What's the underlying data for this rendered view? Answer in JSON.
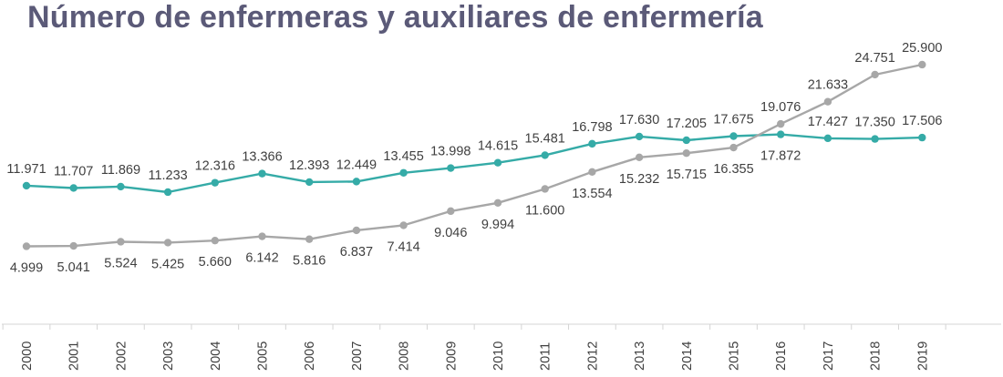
{
  "chart_data": {
    "type": "line",
    "title": "Número de enfermeras y auxiliares de enfermería",
    "categories": [
      "2000",
      "2001",
      "2002",
      "2003",
      "2004",
      "2005",
      "2006",
      "2007",
      "2008",
      "2009",
      "2010",
      "2011",
      "2012",
      "2013",
      "2014",
      "2015",
      "2016",
      "2017",
      "2018",
      "2019"
    ],
    "series": [
      {
        "color": "#35aba7",
        "values": [
          11971,
          11707,
          11869,
          11233,
          12316,
          13366,
          12393,
          12449,
          13455,
          13998,
          14615,
          15481,
          16798,
          17630,
          17205,
          17675,
          17872,
          17427,
          17350,
          17506
        ],
        "labels": [
          "11.971",
          "11.707",
          "11.869",
          "11.233",
          "12.316",
          "13.366",
          "12.393",
          "12.449",
          "13.455",
          "13.998",
          "14.615",
          "15.481",
          "16.798",
          "17.630",
          "17.205",
          "17.675",
          "17.872",
          "17.427",
          "17.350",
          "17.506"
        ]
      },
      {
        "color": "#a7a7a7",
        "values": [
          4999,
          5041,
          5524,
          5425,
          5660,
          6142,
          5816,
          6837,
          7414,
          9046,
          9994,
          11600,
          13554,
          15232,
          15715,
          16355,
          19076,
          21633,
          24751,
          25900
        ],
        "labels": [
          "4.999",
          "5.041",
          "5.524",
          "5.425",
          "5.660",
          "6.142",
          "5.816",
          "6.837",
          "7.414",
          "9.046",
          "9.994",
          "11.600",
          "13.554",
          "15.232",
          "15.715",
          "16.355",
          "19.076",
          "21.633",
          "24.751",
          "25.900"
        ]
      }
    ],
    "grid": false,
    "legend": "none"
  }
}
